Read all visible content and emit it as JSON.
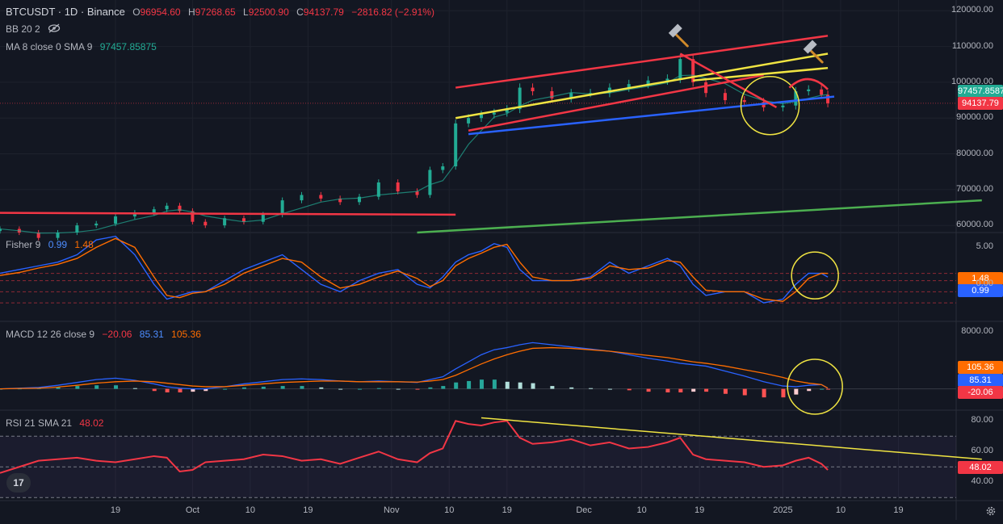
{
  "header": {
    "symbol": "BTCUSDT · 1D · Binance",
    "o_label": "O",
    "o": "96954.60",
    "h_label": "H",
    "h": "97268.65",
    "l_label": "L",
    "l": "92500.90",
    "c_label": "C",
    "c": "94137.79",
    "change": "−2816.82 (−2.91%)",
    "bb": "BB 20 2",
    "ma": "MA 8 close 0 SMA 9",
    "ma_value": "97457.85875"
  },
  "fisher": {
    "label": "Fisher 9",
    "v1": "0.99",
    "v2": "1.48"
  },
  "macd": {
    "label": "MACD 12 26 close 9",
    "hist": "−20.06",
    "macd": "85.31",
    "signal": "105.36"
  },
  "rsi": {
    "label": "RSI 21 SMA 21",
    "value": "48.02"
  },
  "price_tags": {
    "ma": "97457.8587",
    "close": "94137.79"
  },
  "indicator_tags": {
    "fisher_a": "1.48",
    "fisher_b": "0.99",
    "macd_signal": "105.36",
    "macd_line": "85.31",
    "macd_hist": "-20.06",
    "rsi": "48.02"
  },
  "colors": {
    "up": "#22ab94",
    "down": "#f23645",
    "blue": "#2962ff",
    "orange": "#ff6d00",
    "yellow": "#f0e442",
    "bg": "#131722"
  },
  "logo": "17",
  "chart_data": [
    {
      "type": "candlestick",
      "title": "BTCUSDT · 1D · Binance",
      "ylim": [
        58000,
        123000
      ],
      "yticks": [
        "120000.00",
        "110000.00",
        "100000.00",
        "90000.00",
        "80000.00",
        "70000.00",
        "60000.00"
      ],
      "ytick_values": [
        120000,
        110000,
        100000,
        90000,
        80000,
        70000,
        60000
      ],
      "x_labels": [
        "19",
        "Oct",
        "10",
        "19",
        "Nov",
        "10",
        "19",
        "Dec",
        "10",
        "19",
        "2025",
        "10",
        "19"
      ],
      "x_label_dates": [
        "2024-09-19",
        "2024-10-01",
        "2024-10-10",
        "2024-10-19",
        "2024-11-01",
        "2024-11-10",
        "2024-11-19",
        "2024-12-01",
        "2024-12-10",
        "2024-12-19",
        "2025-01-01",
        "2025-01-10",
        "2025-01-19"
      ],
      "close_dates": [
        "2024-09-01",
        "2024-09-04",
        "2024-09-07",
        "2024-09-10",
        "2024-09-13",
        "2024-09-16",
        "2024-09-19",
        "2024-09-22",
        "2024-09-25",
        "2024-09-27",
        "2024-09-29",
        "2024-10-01",
        "2024-10-03",
        "2024-10-06",
        "2024-10-09",
        "2024-10-12",
        "2024-10-15",
        "2024-10-18",
        "2024-10-21",
        "2024-10-24",
        "2024-10-27",
        "2024-10-30",
        "2024-11-02",
        "2024-11-05",
        "2024-11-07",
        "2024-11-09",
        "2024-11-11",
        "2024-11-13",
        "2024-11-15",
        "2024-11-17",
        "2024-11-19",
        "2024-11-21",
        "2024-11-23",
        "2024-11-26",
        "2024-11-29",
        "2024-12-02",
        "2024-12-05",
        "2024-12-08",
        "2024-12-11",
        "2024-12-14",
        "2024-12-16",
        "2024-12-18",
        "2024-12-20",
        "2024-12-23",
        "2024-12-26",
        "2024-12-29",
        "2025-01-01",
        "2025-01-03",
        "2025-01-05",
        "2025-01-07",
        "2025-01-08"
      ],
      "close": [
        59000,
        58000,
        56500,
        58000,
        60000,
        60500,
        62500,
        63500,
        64500,
        65500,
        64000,
        61000,
        60000,
        62000,
        61000,
        63000,
        67000,
        68500,
        67500,
        66500,
        68000,
        72000,
        69500,
        68500,
        75500,
        76500,
        88500,
        90000,
        91000,
        91500,
        92500,
        98500,
        97500,
        95500,
        97000,
        97000,
        98500,
        99500,
        100500,
        101000,
        106500,
        100000,
        97000,
        95000,
        94500,
        93000,
        93500,
        97500,
        98000,
        96500,
        94137.79
      ],
      "trendlines_price": [
        {
          "color": "#f23645",
          "from": [
            "2024-09-01",
            63500
          ],
          "to": [
            "2024-11-11",
            63000
          ]
        },
        {
          "color": "#f23645",
          "from": [
            "2024-11-11",
            98500
          ],
          "to": [
            "2025-01-08",
            113000
          ]
        },
        {
          "color": "#f23645",
          "from": [
            "2024-11-13",
            86500
          ],
          "to": [
            "2024-12-29",
            102000
          ]
        },
        {
          "color": "#f0e442",
          "from": [
            "2024-11-11",
            90000
          ],
          "to": [
            "2025-01-08",
            108000
          ]
        },
        {
          "color": "#f0e442",
          "from": [
            "2024-12-18",
            100500
          ],
          "to": [
            "2025-01-08",
            104000
          ]
        },
        {
          "color": "#2962ff",
          "from": [
            "2024-11-13",
            85500
          ],
          "to": [
            "2025-01-09",
            96000
          ]
        },
        {
          "color": "#4caf50",
          "from": [
            "2024-11-05",
            58000
          ],
          "to": [
            "2025-02-01",
            67000
          ]
        },
        {
          "color": "#f23645",
          "from": [
            "2024-12-16",
            108000
          ],
          "to": [
            "2024-12-31",
            93000
          ]
        }
      ]
    },
    {
      "type": "line",
      "title": "Fisher 9",
      "ylim": [
        -5,
        7
      ],
      "yticks": [
        "5.00",
        "0.00"
      ],
      "ytick_values": [
        5,
        0
      ],
      "series": [
        {
          "name": "",
          "color": "#2962ff",
          "values": [
            1.5,
            2.0,
            2.5,
            3.0,
            4.0,
            6.0,
            6.5,
            4.0,
            0.0,
            -2.0,
            -1.5,
            -1.0,
            -1.0,
            0.5,
            2.0,
            3.0,
            4.0,
            2.0,
            0.0,
            -1.0,
            0.5,
            1.5,
            2.0,
            0.0,
            -0.5,
            1.0,
            3.0,
            4.0,
            4.5,
            5.5,
            5.0,
            2.0,
            0.5,
            0.5,
            0.5,
            1.0,
            3.0,
            1.5,
            2.5,
            3.5,
            2.5,
            0.0,
            -1.5,
            -1.0,
            -1.0,
            -2.5,
            -2.0,
            0.0,
            1.5,
            1.48,
            0.99
          ]
        },
        {
          "name": "",
          "color": "#ff6d00",
          "values": [
            1.2,
            1.6,
            2.2,
            2.7,
            3.5,
            5.0,
            6.2,
            5.0,
            1.0,
            -1.5,
            -1.8,
            -1.2,
            -1.0,
            0.0,
            1.5,
            2.5,
            3.5,
            3.0,
            1.0,
            -0.5,
            0.0,
            1.0,
            1.8,
            0.8,
            -0.3,
            0.5,
            2.5,
            3.5,
            4.2,
            5.0,
            5.4,
            3.0,
            1.0,
            0.5,
            0.5,
            0.8,
            2.5,
            2.0,
            2.2,
            3.2,
            3.0,
            1.0,
            -0.8,
            -1.0,
            -1.0,
            -2.0,
            -2.3,
            -1.0,
            0.8,
            1.5,
            1.48
          ]
        }
      ]
    },
    {
      "type": "bar",
      "title": "MACD 12 26 close 9",
      "ylim": [
        -3000,
        9500
      ],
      "yticks": [
        "8000.00"
      ],
      "ytick_values": [
        8000
      ],
      "series": [
        {
          "name": "",
          "color": "#2962ff",
          "values": [
            0,
            100,
            200,
            500,
            900,
            1300,
            1500,
            1200,
            700,
            300,
            100,
            0,
            0,
            300,
            700,
            1000,
            1300,
            1400,
            1300,
            1100,
            1000,
            1100,
            1000,
            900,
            1300,
            1700,
            2800,
            3800,
            4800,
            5500,
            5800,
            6200,
            6500,
            6200,
            5900,
            5600,
            5300,
            4800,
            4300,
            3900,
            3600,
            3400,
            3200,
            2500,
            1800,
            1000,
            400,
            300,
            500,
            600,
            85.31
          ]
        },
        {
          "name": "",
          "color": "#ff6d00",
          "values": [
            0,
            50,
            100,
            250,
            500,
            800,
            1000,
            1100,
            1000,
            800,
            600,
            400,
            300,
            300,
            500,
            700,
            900,
            1000,
            1100,
            1100,
            1000,
            1000,
            1000,
            950,
            1100,
            1300,
            1900,
            2700,
            3500,
            4200,
            4800,
            5300,
            5700,
            5800,
            5700,
            5500,
            5300,
            5000,
            4700,
            4400,
            4100,
            3800,
            3600,
            3200,
            2700,
            2200,
            1600,
            1100,
            800,
            600,
            105.36
          ]
        },
        {
          "name": "",
          "color": "#22ab94",
          "values": [
            0,
            50,
            100,
            250,
            400,
            500,
            500,
            100,
            -300,
            -500,
            -500,
            -400,
            -300,
            0,
            200,
            300,
            400,
            400,
            200,
            0,
            0,
            100,
            0,
            -50,
            200,
            400,
            900,
            1100,
            1300,
            1300,
            1000,
            900,
            800,
            400,
            200,
            100,
            0,
            -200,
            -400,
            -500,
            -500,
            -400,
            -400,
            -700,
            -900,
            -1200,
            -1200,
            -800,
            -300,
            0,
            -20.06
          ]
        }
      ]
    },
    {
      "type": "line",
      "title": "RSI 21 SMA 21",
      "ylim": [
        28,
        87
      ],
      "yticks": [
        "80.00",
        "60.00",
        "40.00"
      ],
      "ytick_values": [
        80,
        60,
        40
      ],
      "series": [
        {
          "name": "",
          "color": "#f23645",
          "values": [
            46,
            50,
            54,
            55,
            56,
            54,
            53,
            55,
            57,
            56,
            47,
            48,
            53,
            54,
            55,
            58,
            57,
            54,
            55,
            52,
            56,
            60,
            55,
            53,
            59,
            62,
            80,
            78,
            77,
            79,
            80,
            69,
            65,
            66,
            68,
            64,
            66,
            62,
            63,
            66,
            69,
            58,
            55,
            54,
            53,
            50,
            51,
            54,
            56,
            52,
            48.02
          ]
        }
      ],
      "trendline": {
        "color": "#f0e442",
        "from": [
          "2024-11-15",
          82
        ],
        "to": [
          "2025-02-01",
          55
        ]
      }
    }
  ]
}
